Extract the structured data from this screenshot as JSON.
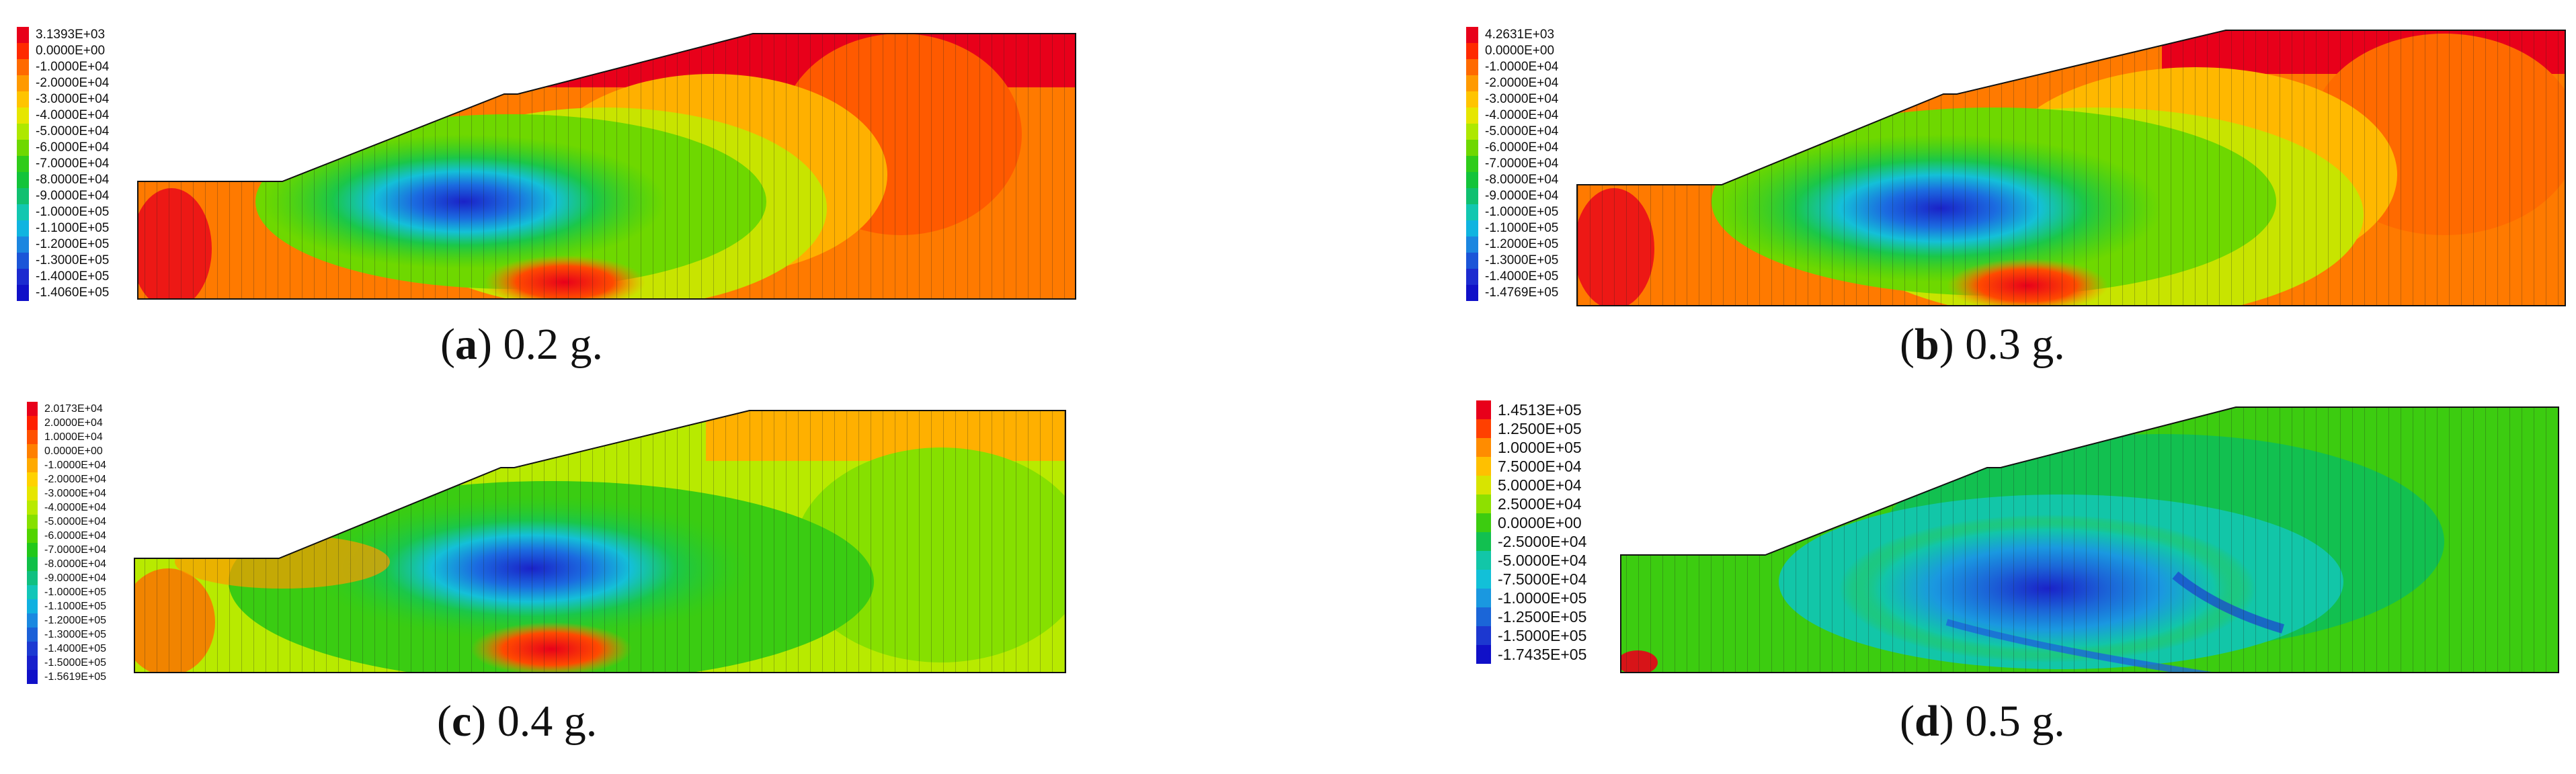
{
  "figure": {
    "panels": [
      {
        "id": "a",
        "caption_letter": "a",
        "caption_text": " 0.2 g.",
        "legend": {
          "labels": [
            "3.1393E+03",
            "0.0000E+00",
            "-1.0000E+04",
            "-2.0000E+04",
            "-3.0000E+04",
            "-4.0000E+04",
            "-5.0000E+04",
            "-6.0000E+04",
            "-7.0000E+04",
            "-8.0000E+04",
            "-9.0000E+04",
            "-1.0000E+05",
            "-1.1000E+05",
            "-1.2000E+05",
            "-1.3000E+05",
            "-1.4000E+05",
            "-1.4060E+05"
          ],
          "colors": [
            "#e8001a",
            "#ff2a00",
            "#ff6a00",
            "#ff9a00",
            "#ffc400",
            "#e6e600",
            "#aee800",
            "#6ed800",
            "#2fcc1a",
            "#13c43a",
            "#10c070",
            "#12c7b0",
            "#10b4e0",
            "#1b86e0",
            "#1b55d8",
            "#1c2bd0",
            "#1010c8"
          ]
        }
      },
      {
        "id": "b",
        "caption_letter": "b",
        "caption_text": " 0.3 g.",
        "legend": {
          "labels": [
            "4.2631E+03",
            "0.0000E+00",
            "-1.0000E+04",
            "-2.0000E+04",
            "-3.0000E+04",
            "-4.0000E+04",
            "-5.0000E+04",
            "-6.0000E+04",
            "-7.0000E+04",
            "-8.0000E+04",
            "-9.0000E+04",
            "-1.0000E+05",
            "-1.1000E+05",
            "-1.2000E+05",
            "-1.3000E+05",
            "-1.4000E+05",
            "-1.4769E+05"
          ],
          "colors": [
            "#e8001a",
            "#ff2a00",
            "#ff6a00",
            "#ff9a00",
            "#ffc400",
            "#e6e600",
            "#aee800",
            "#6ed800",
            "#2fcc1a",
            "#13c43a",
            "#10c070",
            "#12c7b0",
            "#10b4e0",
            "#1b86e0",
            "#1b55d8",
            "#1c2bd0",
            "#1010c8"
          ]
        }
      },
      {
        "id": "c",
        "caption_letter": "c",
        "caption_text": " 0.4 g.",
        "legend": {
          "labels": [
            "2.0173E+04",
            "2.0000E+04",
            "1.0000E+04",
            "0.0000E+00",
            "-1.0000E+04",
            "-2.0000E+04",
            "-3.0000E+04",
            "-4.0000E+04",
            "-5.0000E+04",
            "-6.0000E+04",
            "-7.0000E+04",
            "-8.0000E+04",
            "-9.0000E+04",
            "-1.0000E+05",
            "-1.1000E+05",
            "-1.2000E+05",
            "-1.3000E+05",
            "-1.4000E+05",
            "-1.5000E+05",
            "-1.5619E+05"
          ],
          "colors": [
            "#e8001a",
            "#ff2000",
            "#ff5000",
            "#ff8000",
            "#ffaa00",
            "#ffd200",
            "#e6e600",
            "#b8ea00",
            "#86e000",
            "#52d400",
            "#22c81a",
            "#10c048",
            "#10c080",
            "#12c6b8",
            "#10b0e0",
            "#1a88e0",
            "#1b60d8",
            "#1c3ad2",
            "#1820cc",
            "#1010c8"
          ]
        }
      },
      {
        "id": "d",
        "caption_letter": "d",
        "caption_text": " 0.5 g.",
        "legend": {
          "labels": [
            "1.4513E+05",
            "1.2500E+05",
            "1.0000E+05",
            "7.5000E+04",
            "5.0000E+04",
            "2.5000E+04",
            "0.0000E+00",
            "-2.5000E+04",
            "-5.0000E+04",
            "-7.5000E+04",
            "-1.0000E+05",
            "-1.2500E+05",
            "-1.5000E+05",
            "-1.7435E+05"
          ],
          "colors": [
            "#e8001a",
            "#ff4000",
            "#ff8c00",
            "#ffc000",
            "#d8e400",
            "#8ee000",
            "#3ccc10",
            "#12c050",
            "#12c6a8",
            "#12c0d8",
            "#1a98e0",
            "#1b66d8",
            "#1c38d0",
            "#1010c8"
          ]
        }
      }
    ]
  }
}
